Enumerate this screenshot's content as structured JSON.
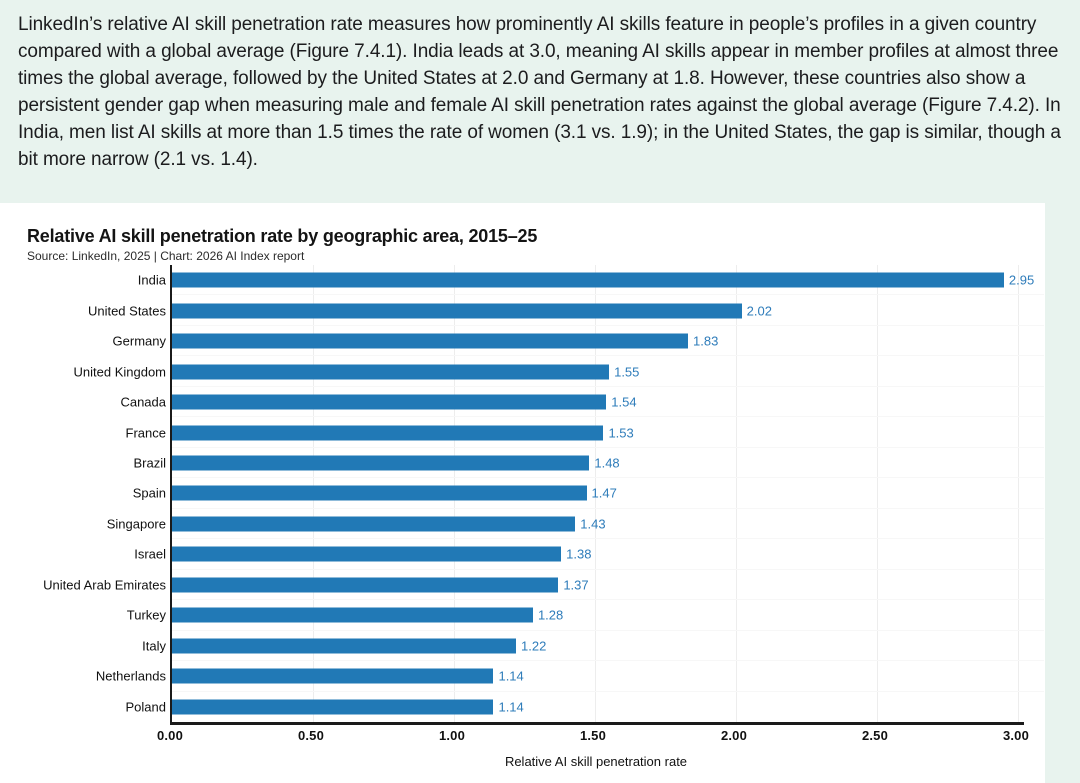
{
  "page": {
    "background_color": "#e8f3ee",
    "card_color": "#ffffff"
  },
  "intro": {
    "text": "LinkedIn’s relative AI skill penetration rate measures how prominently AI skills feature in people’s profiles in a given country compared with a global average (Figure 7.4.1). India leads at 3.0, meaning AI skills appear in member profiles at almost three times the global average, followed by the United States at 2.0 and Germany at 1.8. However, these countries also show a persistent gender gap when measuring male and female AI skill penetration rates against the global average (Figure 7.4.2). In India, men list AI skills at more than 1.5 times the rate of women (3.1 vs. 1.9); in the United States, the gap is similar, though a bit more narrow (2.1 vs. 1.4)."
  },
  "figure": {
    "title": "Relative AI skill penetration rate by geographic area, 2015–25",
    "source": "Source: LinkedIn, 2025 | Chart: 2026 AI Index report"
  },
  "chart_data": {
    "type": "bar",
    "orientation": "horizontal",
    "categories": [
      "India",
      "United States",
      "Germany",
      "United Kingdom",
      "Canada",
      "France",
      "Brazil",
      "Spain",
      "Singapore",
      "Israel",
      "United Arab Emirates",
      "Turkey",
      "Italy",
      "Netherlands",
      "Poland"
    ],
    "values": [
      2.95,
      2.02,
      1.83,
      1.55,
      1.54,
      1.53,
      1.48,
      1.47,
      1.43,
      1.38,
      1.37,
      1.28,
      1.22,
      1.14,
      1.14
    ],
    "value_labels": [
      "2.95",
      "2.02",
      "1.83",
      "1.55",
      "1.54",
      "1.53",
      "1.48",
      "1.47",
      "1.43",
      "1.38",
      "1.37",
      "1.28",
      "1.22",
      "1.14",
      "1.14"
    ],
    "title": "Relative AI skill penetration rate by geographic area, 2015–25",
    "xlabel": "Relative AI skill penetration rate",
    "ylabel": "",
    "xlim": [
      0,
      3.02
    ],
    "xticks": [
      0,
      0.5,
      1,
      1.5,
      2,
      2.5,
      3
    ],
    "xtick_labels": [
      "0.00",
      "0.50",
      "1.00",
      "1.50",
      "2.00",
      "2.50",
      "3.00"
    ],
    "grid": "vertical gridlines at 0.50 intervals, very light",
    "legend": "none",
    "bar_color": "#2179b6",
    "value_label_color": "#2e7cba"
  }
}
